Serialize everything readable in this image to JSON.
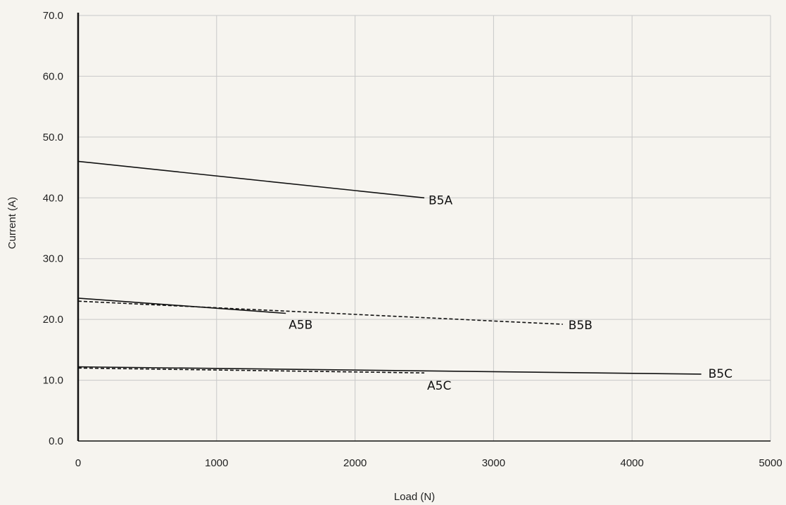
{
  "chart_data": {
    "type": "line",
    "title": "",
    "xlabel": "Load (N)",
    "ylabel": "Current (A)",
    "xlim": [
      0,
      5000
    ],
    "ylim": [
      0,
      70
    ],
    "x_ticks": [
      "0",
      "1000",
      "2000",
      "3000",
      "4000",
      "5000"
    ],
    "y_ticks": [
      "0.0",
      "10.0",
      "20.0",
      "30.0",
      "40.0",
      "50.0",
      "60.0",
      "70.0"
    ],
    "grid": true,
    "series": [
      {
        "name": "B5A",
        "style": "solid",
        "x": [
          0,
          2500
        ],
        "y": [
          46.0,
          40.0
        ]
      },
      {
        "name": "A5B",
        "style": "solid",
        "x": [
          0,
          1500
        ],
        "y": [
          23.5,
          21.0
        ]
      },
      {
        "name": "B5B",
        "style": "dashed",
        "x": [
          0,
          3500
        ],
        "y": [
          23.0,
          19.2
        ]
      },
      {
        "name": "B5C",
        "style": "solid",
        "x": [
          0,
          4500
        ],
        "y": [
          12.2,
          11.0
        ]
      },
      {
        "name": "A5C",
        "style": "dashed",
        "x": [
          0,
          2500
        ],
        "y": [
          12.0,
          11.2
        ]
      }
    ],
    "colors": {
      "background": "#f6f4ef",
      "grid": "#c8c8c8",
      "axis": "#111111",
      "line": "#111111"
    }
  }
}
